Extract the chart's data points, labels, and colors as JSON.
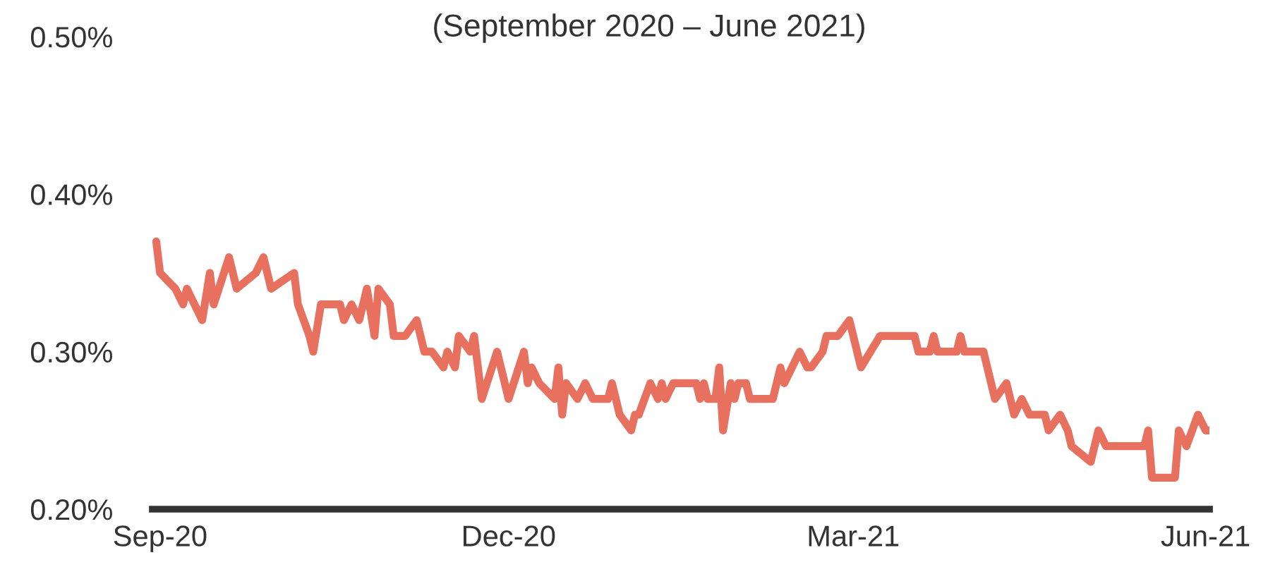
{
  "chart_data": {
    "type": "line",
    "subtitle": "(September 2020 – June 2021)",
    "xlim": [
      "2020-08-30",
      "2021-06-02"
    ],
    "xticks": [
      {
        "value": "2020-09-01",
        "label": "Sep-20"
      },
      {
        "value": "2020-12-01",
        "label": "Dec-20"
      },
      {
        "value": "2021-03-01",
        "label": "Mar-21"
      },
      {
        "value": "2021-06-01",
        "label": "Jun-21"
      }
    ],
    "ylim": [
      0.2,
      0.5
    ],
    "yticks": [
      {
        "value": 0.2,
        "label": "0.20%"
      },
      {
        "value": 0.3,
        "label": "0.30%"
      },
      {
        "value": 0.4,
        "label": "0.40%"
      },
      {
        "value": 0.5,
        "label": "0.50%"
      }
    ],
    "grid": false,
    "legend": false,
    "marker": "none",
    "line_style": "solid",
    "series": [
      {
        "color": "#e8705f",
        "x": [
          "2020-08-31",
          "2020-09-01",
          "2020-09-05",
          "2020-09-07",
          "2020-09-08",
          "2020-09-12",
          "2020-09-14",
          "2020-09-15",
          "2020-09-19",
          "2020-09-21",
          "2020-09-26",
          "2020-09-28",
          "2020-09-30",
          "2020-10-06",
          "2020-10-07",
          "2020-10-10",
          "2020-10-11",
          "2020-10-13",
          "2020-10-18",
          "2020-10-19",
          "2020-10-21",
          "2020-10-23",
          "2020-10-25",
          "2020-10-27",
          "2020-10-28",
          "2020-10-31",
          "2020-11-01",
          "2020-11-04",
          "2020-11-07",
          "2020-11-09",
          "2020-11-11",
          "2020-11-14",
          "2020-11-15",
          "2020-11-17",
          "2020-11-18",
          "2020-11-21",
          "2020-11-22",
          "2020-11-24",
          "2020-11-28",
          "2020-12-01",
          "2020-12-05",
          "2020-12-06",
          "2020-12-07",
          "2020-12-09",
          "2020-12-13",
          "2020-12-14",
          "2020-12-15",
          "2020-12-16",
          "2020-12-19",
          "2020-12-21",
          "2020-12-23",
          "2020-12-27",
          "2020-12-28",
          "2020-12-30",
          "2021-01-02",
          "2021-01-03",
          "2021-01-04",
          "2021-01-07",
          "2021-01-09",
          "2021-01-10",
          "2021-01-11",
          "2021-01-13",
          "2021-01-18",
          "2021-01-19",
          "2021-01-20",
          "2021-01-21",
          "2021-01-22",
          "2021-01-24",
          "2021-01-25",
          "2021-01-26",
          "2021-01-28",
          "2021-01-29",
          "2021-01-30",
          "2021-02-01",
          "2021-02-02",
          "2021-02-08",
          "2021-02-10",
          "2021-02-11",
          "2021-02-13",
          "2021-02-15",
          "2021-02-17",
          "2021-02-18",
          "2021-02-21",
          "2021-02-22",
          "2021-02-25",
          "2021-02-28",
          "2021-03-03",
          "2021-03-08",
          "2021-03-17",
          "2021-03-18",
          "2021-03-21",
          "2021-03-22",
          "2021-03-23",
          "2021-03-28",
          "2021-03-29",
          "2021-03-30",
          "2021-04-04",
          "2021-04-07",
          "2021-04-10",
          "2021-04-12",
          "2021-04-14",
          "2021-04-16",
          "2021-04-20",
          "2021-04-21",
          "2021-04-24",
          "2021-04-26",
          "2021-04-27",
          "2021-05-02",
          "2021-05-04",
          "2021-05-06",
          "2021-05-16",
          "2021-05-17",
          "2021-05-18",
          "2021-05-24",
          "2021-05-25",
          "2021-05-27",
          "2021-05-30",
          "2021-06-01",
          "2021-06-02"
        ],
        "values": [
          0.37,
          0.35,
          0.34,
          0.33,
          0.34,
          0.32,
          0.35,
          0.33,
          0.36,
          0.34,
          0.35,
          0.36,
          0.34,
          0.35,
          0.33,
          0.31,
          0.3,
          0.33,
          0.33,
          0.32,
          0.33,
          0.32,
          0.34,
          0.31,
          0.34,
          0.33,
          0.31,
          0.31,
          0.32,
          0.3,
          0.3,
          0.29,
          0.3,
          0.29,
          0.31,
          0.3,
          0.31,
          0.27,
          0.3,
          0.27,
          0.3,
          0.28,
          0.29,
          0.28,
          0.27,
          0.29,
          0.26,
          0.28,
          0.27,
          0.28,
          0.27,
          0.27,
          0.28,
          0.26,
          0.25,
          0.26,
          0.26,
          0.28,
          0.27,
          0.28,
          0.27,
          0.28,
          0.28,
          0.28,
          0.27,
          0.28,
          0.27,
          0.27,
          0.29,
          0.25,
          0.28,
          0.27,
          0.28,
          0.28,
          0.27,
          0.27,
          0.29,
          0.28,
          0.29,
          0.3,
          0.29,
          0.29,
          0.3,
          0.31,
          0.31,
          0.32,
          0.29,
          0.31,
          0.31,
          0.3,
          0.3,
          0.31,
          0.3,
          0.3,
          0.31,
          0.3,
          0.3,
          0.27,
          0.28,
          0.26,
          0.27,
          0.26,
          0.26,
          0.25,
          0.26,
          0.25,
          0.24,
          0.23,
          0.25,
          0.24,
          0.24,
          0.25,
          0.22,
          0.22,
          0.25,
          0.24,
          0.26,
          0.25,
          0.25
        ]
      }
    ]
  }
}
